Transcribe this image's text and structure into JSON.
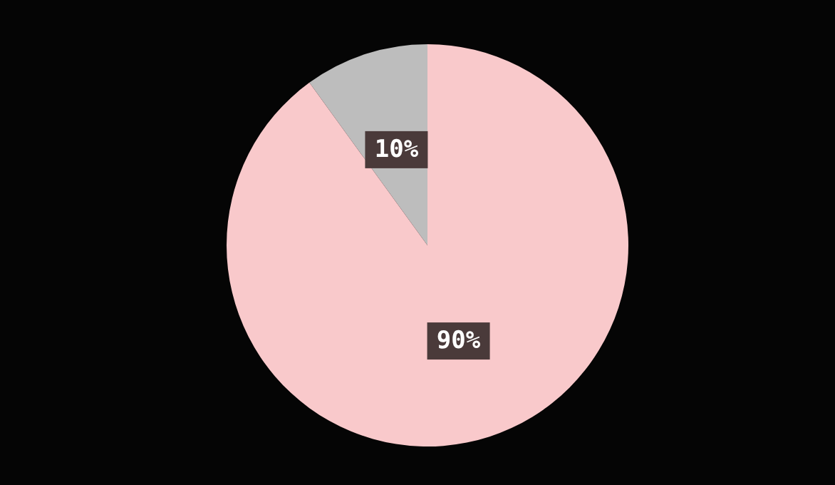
{
  "chart_data": {
    "type": "pie",
    "categories": [
      null,
      null
    ],
    "values": [
      10,
      90
    ],
    "colors": [
      "#bdbdbd",
      "#f9c9cb"
    ],
    "value_labels": [
      "10%",
      "90%"
    ],
    "legend": false
  }
}
